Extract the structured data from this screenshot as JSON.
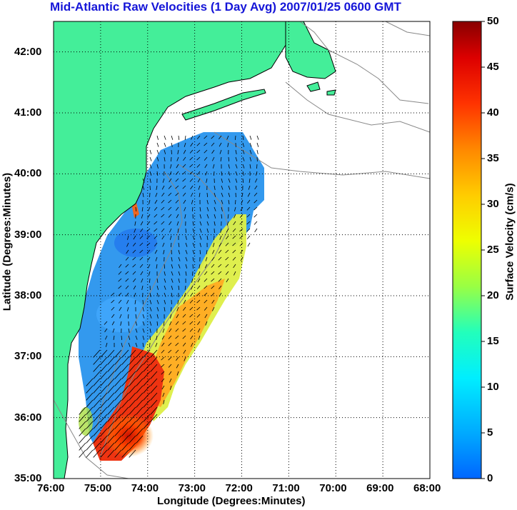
{
  "title": "Mid-Atlantic Raw Velocities (1 Day Avg) 2007/01/25 0600 GMT",
  "map": {
    "xlabel": "Longitude (Degrees:Minutes)",
    "ylabel": "Latitude (Degrees:Minutes)",
    "x_ticks": [
      "76:00",
      "75:00",
      "74:00",
      "73:00",
      "72:00",
      "71:00",
      "70:00",
      "69:00",
      "68:00"
    ],
    "y_ticks": [
      "42:00",
      "41:00",
      "40:00",
      "39:00",
      "38:00",
      "37:00",
      "36:00",
      "35:00"
    ],
    "lon_range": [
      -76,
      -68
    ],
    "lat_range": [
      35,
      42.5
    ],
    "grid": true
  },
  "colorbar": {
    "label": "Surface Velocity (cm/s)",
    "ticks": [
      "50",
      "45",
      "40",
      "35",
      "30",
      "25",
      "20",
      "15",
      "10",
      "5",
      "0"
    ],
    "range": [
      0,
      50
    ]
  },
  "colors": {
    "land": "#44ee99",
    "ocean": "#ffffff",
    "title": "#1515d8",
    "low_velocity": "#0077ff",
    "high_velocity": "#880000"
  }
}
